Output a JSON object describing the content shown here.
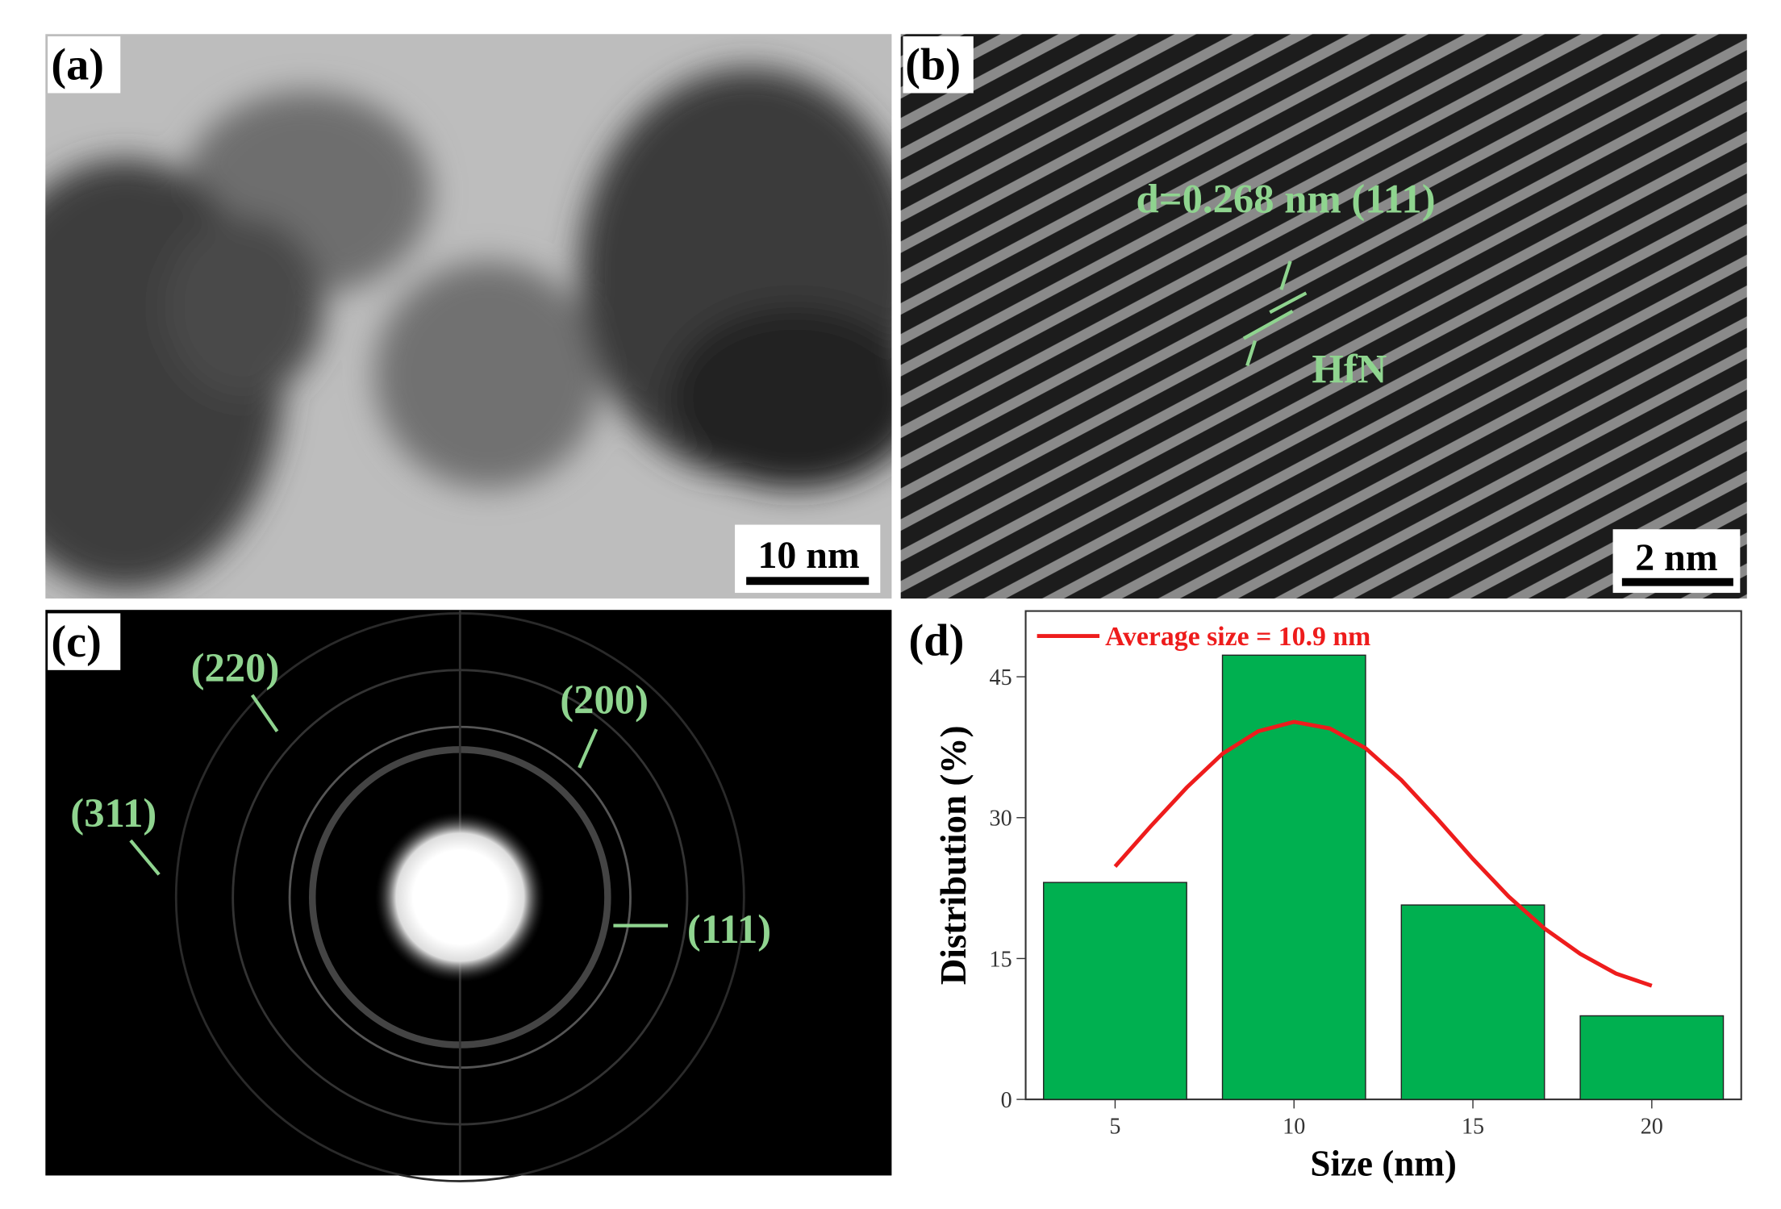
{
  "panels": {
    "a": {
      "label": "(a)",
      "scale_bar": "10 nm"
    },
    "b": {
      "label": "(b)",
      "spacing": "d=0.268 nm (111)",
      "phase": "HfN",
      "scale_bar": "2 nm"
    },
    "c": {
      "label": "(c)",
      "rings": [
        "(220)",
        "(200)",
        "(311)",
        "(111)"
      ]
    }
  },
  "chart_data": {
    "type": "bar",
    "label": "(d)",
    "x_label": "Size (nm)",
    "y_label": "Distribution (%)",
    "x": [
      5,
      10,
      15,
      20
    ],
    "series": [
      {
        "type": "bar",
        "color": "#00b050",
        "values": [
          23.1,
          47.3,
          20.7,
          8.9
        ]
      },
      {
        "type": "line",
        "name": "Average size = 10.9 nm",
        "color": "#ee1c1c",
        "x": [
          5,
          6,
          7,
          8,
          9,
          10,
          11,
          12,
          13,
          14,
          15,
          16,
          17,
          18,
          19,
          20
        ],
        "values": [
          24.8,
          29.1,
          33.2,
          36.8,
          39.2,
          40.2,
          39.5,
          37.4,
          34.0,
          29.9,
          25.6,
          21.6,
          18.2,
          15.5,
          13.4,
          12.1
        ]
      }
    ],
    "xlim": [
      2.5,
      22.5
    ],
    "ylim": [
      0,
      52
    ],
    "xticks": [
      5,
      10,
      15,
      20
    ],
    "yticks": [
      0,
      15,
      30,
      45
    ],
    "legend": "upper left"
  }
}
